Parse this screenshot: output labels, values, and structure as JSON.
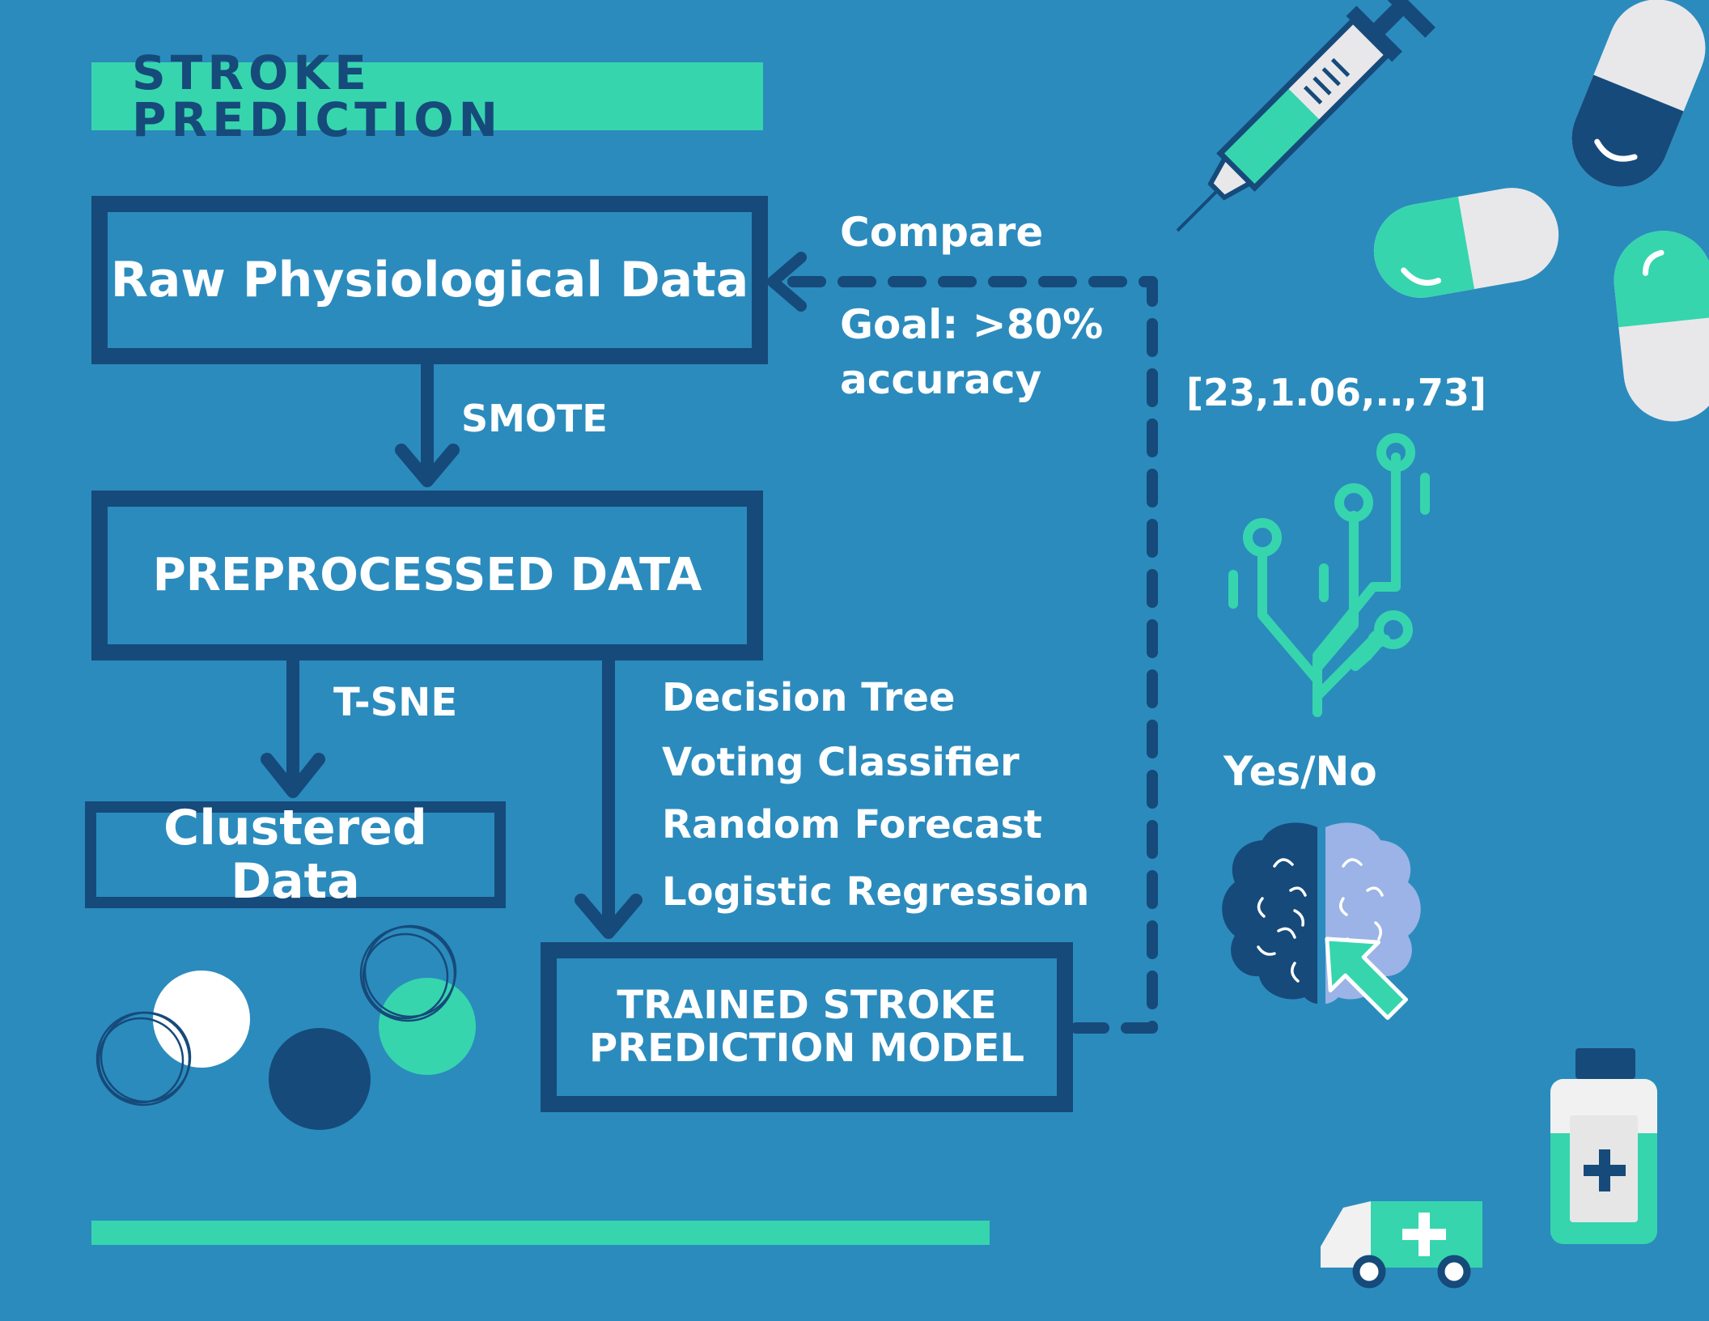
{
  "title": "STROKE PREDICTION",
  "boxes": {
    "raw": "Raw Physiological Data",
    "preprocessed": "PREPROCESSED DATA",
    "clustered": "Clustered Data",
    "trained_line1": "TRAINED STROKE",
    "trained_line2": "PREDICTION MODEL"
  },
  "edge_labels": {
    "smote": "SMOTE",
    "tsne": "T-SNE",
    "compare": "Compare",
    "goal_line1": "Goal: >80%",
    "goal_line2": "accuracy"
  },
  "models": [
    "Decision Tree",
    "Voting Classifier",
    "Random Forecast",
    "Logistic Regression"
  ],
  "input_vector": "[23,1.06,..,73]",
  "output_label": "Yes/No",
  "colors": {
    "background": "#2b8bbd",
    "navy": "#164a7a",
    "mint": "#36d5ae",
    "white": "#ffffff",
    "lavender": "#9bb3e6"
  },
  "icons": [
    "syringe-icon",
    "pill-icon",
    "neural-tree-icon",
    "brain-icon",
    "cursor-icon",
    "ambulance-icon",
    "medicine-bottle-icon"
  ]
}
